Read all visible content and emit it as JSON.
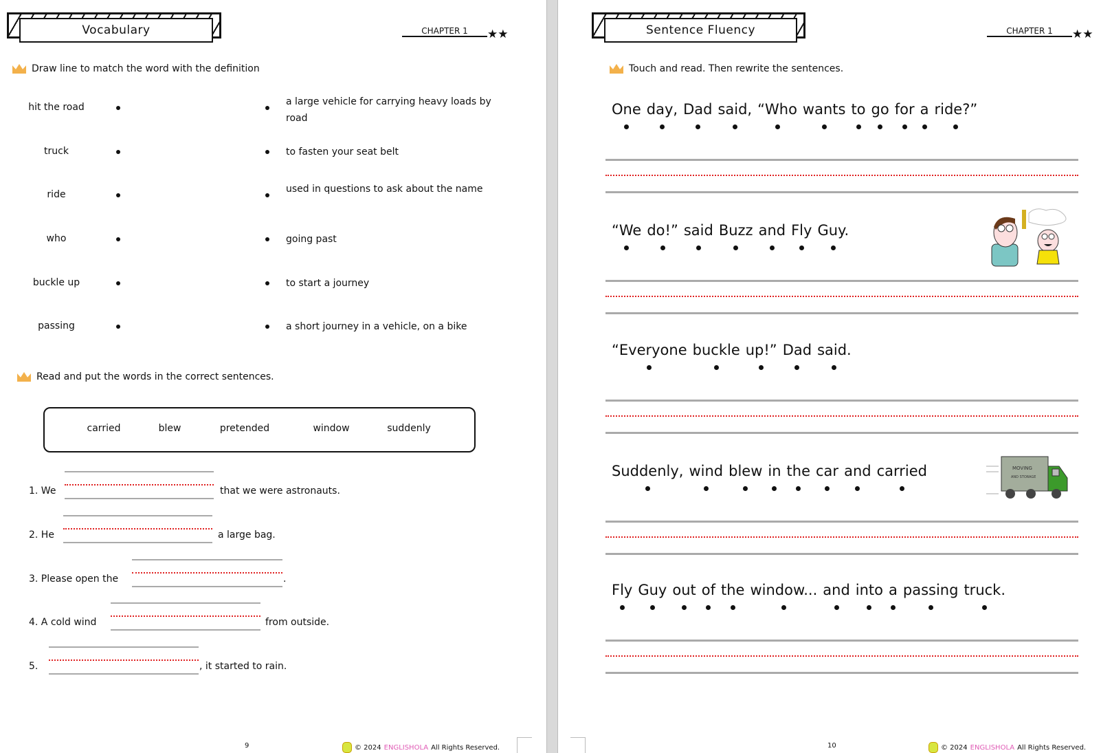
{
  "left_page": {
    "title": "Vocabulary",
    "chapter": "CHAPTER 1",
    "stars": "★★",
    "instruction1": "Draw line to match the word with the definition",
    "words": [
      "hit the road",
      "truck",
      "ride",
      "who",
      "buckle up",
      "passing"
    ],
    "definitions": [
      "a large vehicle for carrying heavy loads by road",
      "to fasten your seat belt",
      "used in questions to ask about the name",
      "going past",
      "to start a journey",
      "a short journey in a vehicle, on a bike"
    ],
    "instruction2": "Read and put the words in the correct sentences.",
    "word_bank": [
      "carried",
      "blew",
      "pretended",
      "window",
      "suddenly"
    ],
    "sentences": [
      {
        "before": "1. We",
        "after": "that we were astronauts."
      },
      {
        "before": "2. He",
        "after": "a large bag."
      },
      {
        "before": "3. Please open the",
        "after": "."
      },
      {
        "before": "4. A cold wind",
        "after": "from outside."
      },
      {
        "before": "5.",
        "after": ", it started to rain."
      }
    ],
    "page_number": "9"
  },
  "right_page": {
    "title": "Sentence Fluency",
    "chapter": "CHAPTER 1",
    "stars": "★★",
    "instruction": "Touch and read. Then rewrite the sentences.",
    "sentences": [
      [
        "One",
        "day,",
        "Dad",
        "said,",
        "“Who",
        "wants",
        "to",
        "go",
        "for",
        "a",
        "ride?”"
      ],
      [
        "“We",
        "do!”",
        "said",
        "Buzz",
        "and",
        "Fly",
        "Guy."
      ],
      [
        "“Everyone",
        "buckle",
        "up!”",
        "Dad",
        "said."
      ],
      [
        "Suddenly,",
        "wind",
        "blew",
        "in",
        "the",
        "car",
        "and",
        "carried"
      ],
      [
        "Fly",
        "Guy",
        "out",
        "of",
        "the",
        "window...",
        "and",
        "into",
        "a",
        "passing",
        "truck."
      ]
    ],
    "truck_text": [
      "MOVING",
      "AND STORAGE"
    ],
    "page_number": "10"
  },
  "footer": {
    "copyright": "© 2024",
    "brand": "ENGLISHOLA",
    "rights": "All Rights Reserved."
  },
  "colors": {
    "crown": "#f3b14b",
    "brand": "#e05ab5",
    "dotted_line": "#e02020",
    "guide_line": "#aaaaaa"
  }
}
